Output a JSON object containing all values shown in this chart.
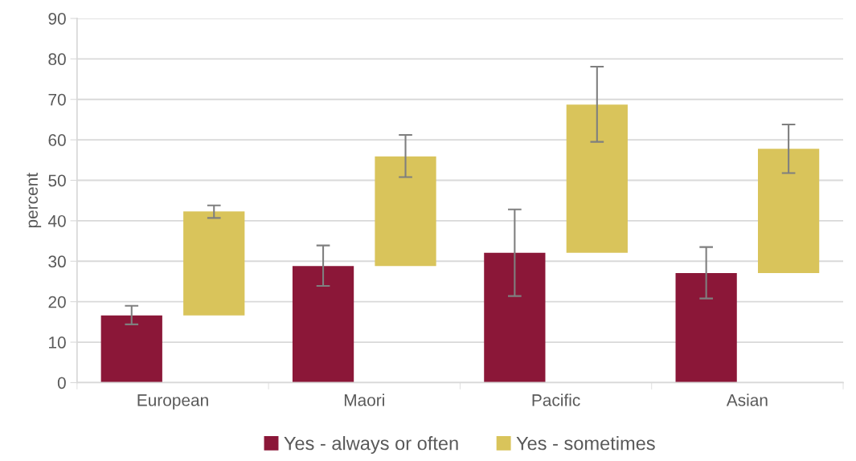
{
  "chart_data": {
    "type": "bar",
    "ylabel": "percent",
    "categories": [
      "European",
      "Maori",
      "Pacific",
      "Asian"
    ],
    "series": [
      {
        "name": "Yes - always or often",
        "color": "#8b1738",
        "values": [
          16.6,
          28.8,
          32.1,
          27.1
        ],
        "errors": [
          [
            14.4,
            19.0
          ],
          [
            23.9,
            33.9
          ],
          [
            21.4,
            42.8
          ],
          [
            20.8,
            33.5
          ]
        ]
      },
      {
        "name": "Yes - sometimes",
        "color": "#d9c45b",
        "base": [
          16.6,
          28.8,
          32.1,
          27.1
        ],
        "values": [
          25.7,
          27.1,
          36.6,
          30.7
        ],
        "errors": [
          [
            40.7,
            43.8
          ],
          [
            50.8,
            61.2
          ],
          [
            59.5,
            78.1
          ],
          [
            51.8,
            63.8
          ]
        ]
      }
    ],
    "ylim": [
      0,
      90
    ],
    "yticks": [
      0,
      10,
      20,
      30,
      40,
      50,
      60,
      70,
      80,
      90
    ],
    "grid": "y",
    "legend": "bottom"
  }
}
